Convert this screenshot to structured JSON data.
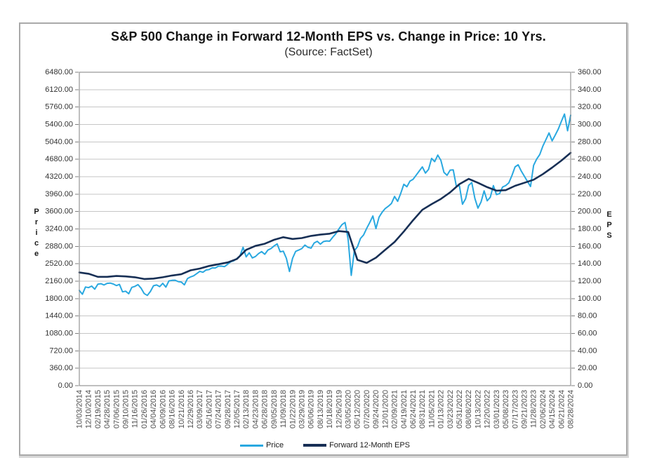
{
  "chart_data": {
    "type": "line",
    "title": "S&P 500 Change in Forward 12-Month EPS vs. Change in Price: 10 Yrs.",
    "subtitle": "(Source: FactSet)",
    "grid": "horizontal",
    "legend_position": "bottom",
    "left_axis": {
      "label": "Price",
      "min": 0,
      "max": 6480,
      "tick_step": 360,
      "ticks": [
        "6480.00",
        "6120.00",
        "5760.00",
        "5400.00",
        "5040.00",
        "4680.00",
        "4320.00",
        "3960.00",
        "3600.00",
        "3240.00",
        "2880.00",
        "2520.00",
        "2160.00",
        "1800.00",
        "1440.00",
        "1080.00",
        "720.00",
        "360.00",
        "0.00"
      ]
    },
    "right_axis": {
      "label": "EPS",
      "min": 0,
      "max": 360,
      "tick_step": 20,
      "ticks": [
        "360.00",
        "340.00",
        "320.00",
        "300.00",
        "280.00",
        "260.00",
        "240.00",
        "220.00",
        "200.00",
        "180.00",
        "160.00",
        "140.00",
        "120.00",
        "100.00",
        "80.00",
        "60.00",
        "40.00",
        "20.00",
        "0.00"
      ]
    },
    "x_labels": [
      "10/03/2014",
      "12/10/2014",
      "02/19/2015",
      "04/28/2015",
      "07/06/2015",
      "09/10/2015",
      "11/16/2015",
      "01/26/2016",
      "04/04/2016",
      "06/09/2016",
      "08/16/2016",
      "10/21/2016",
      "12/29/2016",
      "03/09/2017",
      "05/16/2017",
      "07/24/2017",
      "09/28/2017",
      "12/05/2017",
      "02/13/2018",
      "04/23/2018",
      "06/28/2018",
      "09/05/2018",
      "11/09/2018",
      "01/22/2019",
      "03/29/2019",
      "06/06/2019",
      "08/13/2019",
      "10/18/2019",
      "12/26/2019",
      "03/05/2020",
      "05/12/2020",
      "07/20/2020",
      "09/24/2020",
      "12/01/2020",
      "02/09/2021",
      "04/19/2021",
      "06/24/2021",
      "08/31/2021",
      "11/05/2021",
      "01/13/2022",
      "03/23/2022",
      "05/31/2022",
      "08/08/2022",
      "10/13/2022",
      "12/20/2022",
      "03/01/2023",
      "05/08/2023",
      "07/17/2023",
      "09/21/2023",
      "11/28/2023",
      "02/06/2024",
      "04/15/2024",
      "06/21/2024",
      "08/28/2024"
    ],
    "series": [
      {
        "name": "Price",
        "axis": "left",
        "color": "#29a8e0",
        "line_width": 2,
        "sampling": "uniform between first and last x label",
        "values": [
          1968,
          1890,
          2040,
          2026,
          2058,
          1995,
          2098,
          2108,
          2081,
          2115,
          2121,
          2102,
          2069,
          2093,
          1940,
          1952,
          1900,
          2033,
          2053,
          2089,
          2012,
          1903,
          1865,
          1948,
          2066,
          2081,
          2047,
          2115,
          2037,
          2166,
          2178,
          2180,
          2151,
          2141,
          2085,
          2213,
          2249,
          2271,
          2316,
          2365,
          2344,
          2391,
          2400,
          2436,
          2432,
          2470,
          2472,
          2461,
          2510,
          2562,
          2582,
          2630,
          2684,
          2860,
          2663,
          2747,
          2641,
          2670,
          2730,
          2772,
          2716,
          2802,
          2834,
          2888,
          2931,
          2768,
          2781,
          2633,
          2360,
          2633,
          2776,
          2804,
          2834,
          2906,
          2860,
          2843,
          2950,
          2985,
          2926,
          2979,
          2992,
          2986,
          3067,
          3141,
          3240,
          3330,
          3373,
          3024,
          2280,
          2790,
          2870,
          3044,
          3115,
          3252,
          3373,
          3508,
          3247,
          3484,
          3585,
          3662,
          3709,
          3768,
          3911,
          3811,
          3975,
          4163,
          4113,
          4230,
          4266,
          4352,
          4437,
          4523,
          4396,
          4471,
          4698,
          4631,
          4766,
          4659,
          4409,
          4349,
          4456,
          4462,
          4124,
          4132,
          3750,
          3863,
          4140,
          4199,
          3873,
          3670,
          3797,
          4027,
          3822,
          3895,
          4136,
          3951,
          3971,
          4109,
          4138,
          4193,
          4348,
          4523,
          4566,
          4437,
          4330,
          4224,
          4117,
          4555,
          4685,
          4780,
          4954,
          5088,
          5224,
          5061,
          5180,
          5306,
          5465,
          5615,
          5270,
          5592
        ]
      },
      {
        "name": "Forward 12-Month EPS",
        "axis": "right",
        "color": "#172f55",
        "line_width": 2.6,
        "sampling": "aligned to x labels",
        "values": [
          130.0,
          128.5,
          125.0,
          125.0,
          126.0,
          125.5,
          124.5,
          122.5,
          123.0,
          124.5,
          126.5,
          128.0,
          132.5,
          134.5,
          137.5,
          139.5,
          141.5,
          145.5,
          156.0,
          160.5,
          163.0,
          167.5,
          170.5,
          168.5,
          169.5,
          172.0,
          173.5,
          174.5,
          177.5,
          176.5,
          144.5,
          141.0,
          147.0,
          156.0,
          165.0,
          177.0,
          190.0,
          202.0,
          208.5,
          214.5,
          222.0,
          231.5,
          237.5,
          233.0,
          228.0,
          224.0,
          224.5,
          229.5,
          233.0,
          236.5,
          243.0,
          250.5,
          258.5,
          267.5
        ]
      }
    ]
  }
}
